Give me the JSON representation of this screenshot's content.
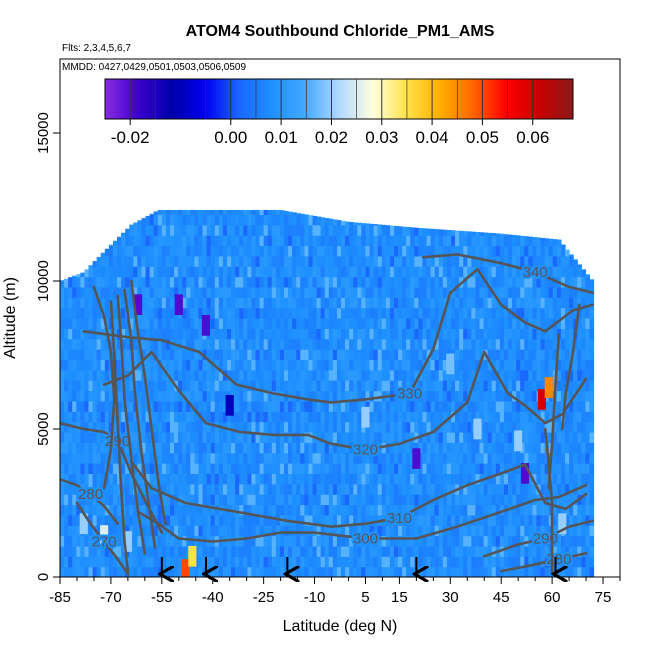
{
  "chart_data": {
    "type": "heatmap",
    "title": "ATOM4 Southbound Chloride_PM1_AMS",
    "flights_label": "Flts: 2,3,4,5,6,7",
    "dates_label": "MMDD: 0427,0429,0501,0503,0506,0509",
    "xlabel": "Latitude (deg N)",
    "ylabel": "Altitude (m)",
    "xlim": [
      -85,
      80
    ],
    "ylim": [
      0,
      17500
    ],
    "x_ticks": [
      -85,
      -70,
      -55,
      -40,
      -25,
      -10,
      5,
      15,
      30,
      45,
      60,
      75
    ],
    "x_tick_labels": [
      "-85",
      "-70",
      "-55",
      "-40",
      "-25",
      "-10",
      "5",
      "15",
      "30",
      "45",
      "60",
      "75"
    ],
    "x_minor_ticks": [
      -80,
      -75,
      -65,
      -60,
      -50,
      -45,
      -35,
      -30,
      -20,
      -15,
      -5,
      0,
      10,
      20,
      25,
      35,
      40,
      50,
      55,
      65,
      70,
      80
    ],
    "y_ticks": [
      0,
      5000,
      10000,
      15000
    ],
    "y_tick_labels": [
      "0",
      "5000",
      "10000",
      "15000"
    ],
    "colorbar": {
      "range": [
        -0.025,
        0.068
      ],
      "ticks": [
        -0.02,
        0.0,
        0.01,
        0.02,
        0.03,
        0.04,
        0.05,
        0.06
      ],
      "tick_labels": [
        "-0.02",
        "0.00",
        "0.01",
        "0.02",
        "0.03",
        "0.04",
        "0.05",
        "0.06"
      ],
      "colors": [
        "#8a2be2",
        "#3a00cc",
        "#0000aa",
        "#0000ee",
        "#1a66ff",
        "#1e90ff",
        "#44aaff",
        "#b0d8ff",
        "#ffffe0",
        "#ffe44d",
        "#ffb000",
        "#ff6600",
        "#ff0000",
        "#c80000",
        "#8b1a1a"
      ]
    },
    "data_extent": {
      "lat": [
        -85,
        72
      ],
      "alt_top_by_lat": [
        [
          -85,
          10000
        ],
        [
          -78,
          10300
        ],
        [
          -72,
          11000
        ],
        [
          -64,
          11900
        ],
        [
          -56,
          12400
        ],
        [
          -20,
          12400
        ],
        [
          0,
          12000
        ],
        [
          20,
          11800
        ],
        [
          45,
          11600
        ],
        [
          62,
          11400
        ],
        [
          72,
          10000
        ]
      ]
    },
    "hotspots": [
      {
        "lat": 57,
        "alt": 6000,
        "value": 0.06
      },
      {
        "lat": 59,
        "alt": 6400,
        "value": 0.045
      },
      {
        "lat": -48,
        "alt": 250,
        "value": 0.05
      },
      {
        "lat": -46,
        "alt": 700,
        "value": 0.035
      },
      {
        "lat": -62,
        "alt": 9200,
        "value": -0.02
      },
      {
        "lat": -50,
        "alt": 9200,
        "value": -0.02
      },
      {
        "lat": -42,
        "alt": 8500,
        "value": -0.02
      },
      {
        "lat": 20,
        "alt": 4000,
        "value": -0.02
      },
      {
        "lat": 52,
        "alt": 3500,
        "value": -0.02
      },
      {
        "lat": -35,
        "alt": 5800,
        "value": -0.01
      },
      {
        "lat": 38,
        "alt": 5000,
        "value": 0.02
      },
      {
        "lat": 50,
        "alt": 4600,
        "value": 0.02
      },
      {
        "lat": 63,
        "alt": 1800,
        "value": 0.02
      },
      {
        "lat": -78,
        "alt": 1800,
        "value": 0.02
      },
      {
        "lat": -72,
        "alt": 1400,
        "value": 0.025
      },
      {
        "lat": -65,
        "alt": 1200,
        "value": 0.02
      },
      {
        "lat": 5,
        "alt": 5400,
        "value": 0.02
      },
      {
        "lat": 30,
        "alt": 7200,
        "value": 0.018
      }
    ],
    "contours": [
      {
        "label": "340",
        "points": [
          [
            22,
            10800
          ],
          [
            32,
            10900
          ],
          [
            45,
            10600
          ],
          [
            55,
            10300
          ],
          [
            65,
            9800
          ],
          [
            72,
            9600
          ]
        ]
      },
      {
        "label": "330",
        "points": [
          [
            -78,
            8300
          ],
          [
            -65,
            8100
          ],
          [
            -55,
            8000
          ],
          [
            -44,
            7600
          ],
          [
            -33,
            6500
          ],
          [
            -22,
            6200
          ],
          [
            -12,
            6000
          ],
          [
            -5,
            5900
          ],
          [
            5,
            6000
          ],
          [
            18,
            6200
          ],
          [
            25,
            7700
          ],
          [
            30,
            9600
          ],
          [
            38,
            10400
          ],
          [
            45,
            9200
          ],
          [
            52,
            8600
          ],
          [
            58,
            8300
          ],
          [
            66,
            9000
          ],
          [
            72,
            9200
          ]
        ]
      },
      {
        "label": "320",
        "points": [
          [
            -72,
            6500
          ],
          [
            -65,
            6800
          ],
          [
            -58,
            7600
          ],
          [
            -50,
            6300
          ],
          [
            -42,
            5200
          ],
          [
            -32,
            4900
          ],
          [
            -22,
            4800
          ],
          [
            -12,
            4800
          ],
          [
            -5,
            4500
          ],
          [
            5,
            4300
          ],
          [
            15,
            4500
          ],
          [
            25,
            4900
          ],
          [
            35,
            5900
          ],
          [
            40,
            7600
          ],
          [
            47,
            6200
          ],
          [
            52,
            5800
          ],
          [
            58,
            5200
          ],
          [
            63,
            5500
          ],
          [
            70,
            6700
          ]
        ]
      },
      {
        "label": "310",
        "points": [
          [
            -64,
            3900
          ],
          [
            -58,
            3000
          ],
          [
            -48,
            2500
          ],
          [
            -38,
            2300
          ],
          [
            -28,
            2100
          ],
          [
            -18,
            1900
          ],
          [
            -5,
            1700
          ],
          [
            5,
            1800
          ],
          [
            15,
            2000
          ],
          [
            25,
            2600
          ],
          [
            35,
            3100
          ],
          [
            45,
            3500
          ],
          [
            52,
            3800
          ],
          [
            58,
            2500
          ],
          [
            64,
            2300
          ],
          [
            70,
            2800
          ]
        ]
      },
      {
        "label": "300",
        "points": [
          [
            -62,
            2200
          ],
          [
            -56,
            1800
          ],
          [
            -50,
            1300
          ],
          [
            -40,
            1200
          ],
          [
            -30,
            1300
          ],
          [
            -20,
            1500
          ],
          [
            -10,
            1500
          ],
          [
            5,
            1300
          ],
          [
            20,
            1300
          ],
          [
            32,
            1700
          ],
          [
            45,
            2200
          ],
          [
            55,
            2600
          ],
          [
            62,
            2700
          ],
          [
            70,
            3100
          ]
        ]
      },
      {
        "label": "290",
        "points": [
          [
            -85,
            5200
          ],
          [
            -78,
            5000
          ],
          [
            -72,
            4900
          ],
          [
            -68,
            4600
          ],
          [
            -64,
            3500
          ],
          [
            -60,
            2600
          ],
          [
            -55,
            1500
          ]
        ]
      },
      {
        "label": "290",
        "points": [
          [
            40,
            700
          ],
          [
            50,
            1100
          ],
          [
            58,
            1300
          ],
          [
            65,
            1700
          ],
          [
            72,
            1900
          ]
        ]
      },
      {
        "label": "280",
        "points": [
          [
            -85,
            3300
          ],
          [
            -80,
            3100
          ],
          [
            -76,
            2800
          ],
          [
            -72,
            2400
          ],
          [
            -68,
            1800
          ]
        ]
      },
      {
        "label": "280",
        "points": [
          [
            45,
            200
          ],
          [
            54,
            400
          ],
          [
            62,
            600
          ],
          [
            70,
            800
          ]
        ]
      },
      {
        "label": "270",
        "points": [
          [
            -80,
            2500
          ],
          [
            -76,
            1800
          ],
          [
            -72,
            1200
          ],
          [
            -68,
            600
          ],
          [
            -65,
            100
          ]
        ]
      },
      {
        "label": "",
        "points": [
          [
            -70,
            9300
          ],
          [
            -69,
            7500
          ],
          [
            -68,
            5200
          ],
          [
            -67,
            3000
          ],
          [
            -66,
            1200
          ],
          [
            -65,
            200
          ]
        ]
      },
      {
        "label": "",
        "points": [
          [
            -68,
            9500
          ],
          [
            -67,
            8000
          ],
          [
            -66,
            6000
          ],
          [
            -64,
            4000
          ],
          [
            -62,
            2200
          ],
          [
            -60,
            800
          ]
        ]
      },
      {
        "label": "",
        "points": [
          [
            -66,
            9700
          ],
          [
            -64,
            8000
          ],
          [
            -63,
            6300
          ],
          [
            -61,
            4200
          ],
          [
            -59,
            2600
          ],
          [
            -57,
            1000
          ]
        ]
      },
      {
        "label": "",
        "points": [
          [
            -64,
            10000
          ],
          [
            -62,
            8200
          ],
          [
            -60,
            6800
          ],
          [
            -58,
            5000
          ],
          [
            -56,
            3200
          ],
          [
            -54,
            1800
          ]
        ]
      },
      {
        "label": "",
        "points": [
          [
            -75,
            9800
          ],
          [
            -72,
            8800
          ],
          [
            -70,
            7600
          ],
          [
            -69,
            6000
          ],
          [
            -70,
            4300
          ],
          [
            -72,
            3000
          ]
        ]
      },
      {
        "label": "",
        "points": [
          [
            58,
            5000
          ],
          [
            59,
            3800
          ],
          [
            60,
            2500
          ],
          [
            60,
            1200
          ],
          [
            60,
            100
          ]
        ]
      },
      {
        "label": "",
        "points": [
          [
            62,
            8200
          ],
          [
            61,
            6500
          ],
          [
            60,
            4500
          ],
          [
            59,
            3000
          ]
        ]
      },
      {
        "label": "",
        "points": [
          [
            68,
            9200
          ],
          [
            66,
            7500
          ],
          [
            64,
            6200
          ],
          [
            63,
            5000
          ]
        ]
      }
    ],
    "arrows_lat": [
      -55,
      -42,
      -18,
      20,
      61
    ]
  }
}
